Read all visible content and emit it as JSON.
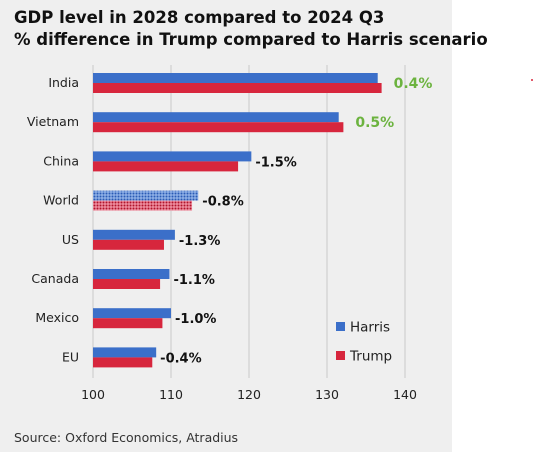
{
  "title": {
    "line1": "GDP level in 2028 compared to 2024 Q3",
    "line2": "% difference in Trump compared to Harris scenario"
  },
  "source": "Source: Oxford Economics, Atradius",
  "colors": {
    "harris": "#3b6fc9",
    "trump": "#d7263d",
    "label_positive": "#6cb33f",
    "label_negative": "#111111"
  },
  "chart_data": {
    "type": "bar",
    "orientation": "horizontal",
    "categories": [
      "India",
      "Vietnam",
      "China",
      "World",
      "US",
      "Canada",
      "Mexico",
      "EU"
    ],
    "series": [
      {
        "name": "Harris",
        "values": [
          136.5,
          131.5,
          120.3,
          113.5,
          110.5,
          109.8,
          110.0,
          108.1
        ]
      },
      {
        "name": "Trump",
        "values": [
          137.0,
          132.1,
          118.6,
          112.7,
          109.1,
          108.6,
          108.9,
          107.6
        ]
      }
    ],
    "difference_labels": [
      "0.4%",
      "0.5%",
      "-1.5%",
      "-0.8%",
      "-1.3%",
      "-1.1%",
      "-1.0%",
      "-0.4%"
    ],
    "hatched_category": "World",
    "xlim": [
      100,
      140
    ],
    "xticks": [
      100,
      110,
      120,
      130,
      140
    ],
    "grid": "vertical",
    "legend_position": "bottom-right",
    "title": "GDP level in 2028 compared to 2024 Q3",
    "subtitle": "% difference in Trump compared to Harris scenario"
  }
}
